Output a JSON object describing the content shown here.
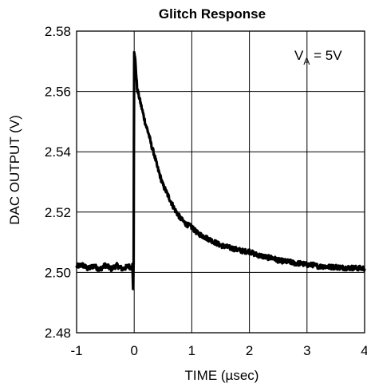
{
  "chart_data": {
    "type": "line",
    "title": "Glitch Response",
    "xlabel": "TIME (µsec)",
    "ylabel": "DAC OUTPUT (V)",
    "xlim": [
      -1,
      4
    ],
    "ylim": [
      2.48,
      2.58
    ],
    "xticks": [
      -1,
      0,
      1,
      2,
      3,
      4
    ],
    "xtick_labels": [
      "-1",
      "0",
      "1",
      "2",
      "3",
      "4"
    ],
    "yticks": [
      2.48,
      2.5,
      2.52,
      2.54,
      2.56,
      2.58
    ],
    "ytick_labels": [
      "2.48",
      "2.50",
      "2.52",
      "2.54",
      "2.56",
      "2.58"
    ],
    "grid": true,
    "annotation": {
      "main": "V",
      "sub": "A",
      "rest": " = 5V"
    },
    "line_color": "#000000",
    "series": [
      {
        "points": [
          [
            -1.0,
            2.502
          ],
          [
            -0.9,
            2.5025
          ],
          [
            -0.8,
            2.5012
          ],
          [
            -0.7,
            2.5022
          ],
          [
            -0.6,
            2.501
          ],
          [
            -0.5,
            2.5024
          ],
          [
            -0.4,
            2.5012
          ],
          [
            -0.3,
            2.5023
          ],
          [
            -0.2,
            2.5011
          ],
          [
            -0.1,
            2.5021
          ],
          [
            -0.05,
            2.5016
          ],
          [
            -0.03,
            2.5024
          ],
          [
            -0.02,
            2.4945
          ],
          [
            -0.01,
            2.503
          ],
          [
            0.0,
            2.573
          ],
          [
            0.02,
            2.57
          ],
          [
            0.05,
            2.561
          ],
          [
            0.1,
            2.557
          ],
          [
            0.15,
            2.553
          ],
          [
            0.2,
            2.549
          ],
          [
            0.25,
            2.546
          ],
          [
            0.3,
            2.542
          ],
          [
            0.35,
            2.539
          ],
          [
            0.4,
            2.535
          ],
          [
            0.45,
            2.532
          ],
          [
            0.5,
            2.529
          ],
          [
            0.6,
            2.525
          ],
          [
            0.7,
            2.521
          ],
          [
            0.8,
            2.518
          ],
          [
            0.9,
            2.516
          ],
          [
            1.0,
            2.515
          ],
          [
            1.1,
            2.513
          ],
          [
            1.2,
            2.512
          ],
          [
            1.3,
            2.511
          ],
          [
            1.4,
            2.51
          ],
          [
            1.5,
            2.509
          ],
          [
            1.6,
            2.5085
          ],
          [
            1.7,
            2.508
          ],
          [
            1.8,
            2.5075
          ],
          [
            1.9,
            2.507
          ],
          [
            2.0,
            2.507
          ],
          [
            2.1,
            2.506
          ],
          [
            2.2,
            2.5055
          ],
          [
            2.3,
            2.505
          ],
          [
            2.4,
            2.5048
          ],
          [
            2.5,
            2.504
          ],
          [
            2.6,
            2.5037
          ],
          [
            2.7,
            2.5035
          ],
          [
            2.8,
            2.503
          ],
          [
            2.9,
            2.503
          ],
          [
            3.0,
            2.5025
          ],
          [
            3.1,
            2.5025
          ],
          [
            3.2,
            2.502
          ],
          [
            3.3,
            2.502
          ],
          [
            3.4,
            2.5018
          ],
          [
            3.5,
            2.5018
          ],
          [
            3.6,
            2.5016
          ],
          [
            3.7,
            2.5015
          ],
          [
            3.8,
            2.5015
          ],
          [
            3.9,
            2.5014
          ],
          [
            4.0,
            2.5013
          ]
        ],
        "noise_amplitude": 0.0008
      }
    ]
  }
}
